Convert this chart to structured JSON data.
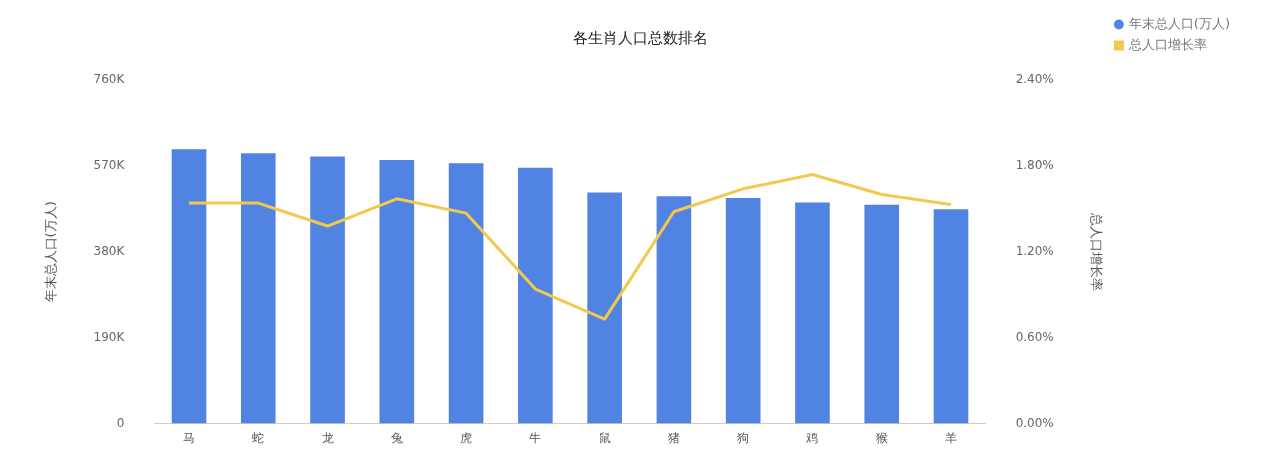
{
  "chart_data": {
    "type": "bar",
    "title": "各生肖人口总数排名",
    "ylabel": "年末总人口(万人)",
    "y2label": "总人口增长率",
    "categories": [
      "马",
      "蛇",
      "龙",
      "兔",
      "虎",
      "牛",
      "鼠",
      "猪",
      "狗",
      "鸡",
      "猴",
      "羊"
    ],
    "series": [
      {
        "name": "年末总人口(万人)",
        "color": "#5183e3",
        "values": [
          607000,
          598000,
          591000,
          583000,
          576000,
          566000,
          511000,
          503000,
          499000,
          489000,
          484000,
          474000
        ]
      },
      {
        "name": "总人口增长率",
        "type": "line",
        "axis": "y2",
        "color": "#f2c94c",
        "values": [
          1.54,
          1.54,
          1.38,
          1.57,
          1.47,
          0.94,
          0.73,
          1.48,
          1.64,
          1.74,
          1.6,
          1.53
        ]
      }
    ],
    "ylim": [
      0,
      760000
    ],
    "yticks": [
      0,
      {
        "value": 190000,
        "label": "190K"
      },
      {
        "value": 380000,
        "label": "380K"
      },
      {
        "value": 570000,
        "label": "570K"
      },
      {
        "value": 760000,
        "label": "760K"
      }
    ],
    "y2lim": [
      0,
      2.4
    ],
    "y2ticks": [
      {
        "value": 0,
        "label": "0.00%"
      },
      {
        "value": 0.6,
        "label": "0.60%"
      },
      {
        "value": 1.2,
        "label": "1.20%"
      },
      {
        "value": 1.8,
        "label": "1.80%"
      },
      {
        "value": 2.4,
        "label": "2.40%"
      }
    ],
    "grid": false,
    "legend": "top right"
  }
}
